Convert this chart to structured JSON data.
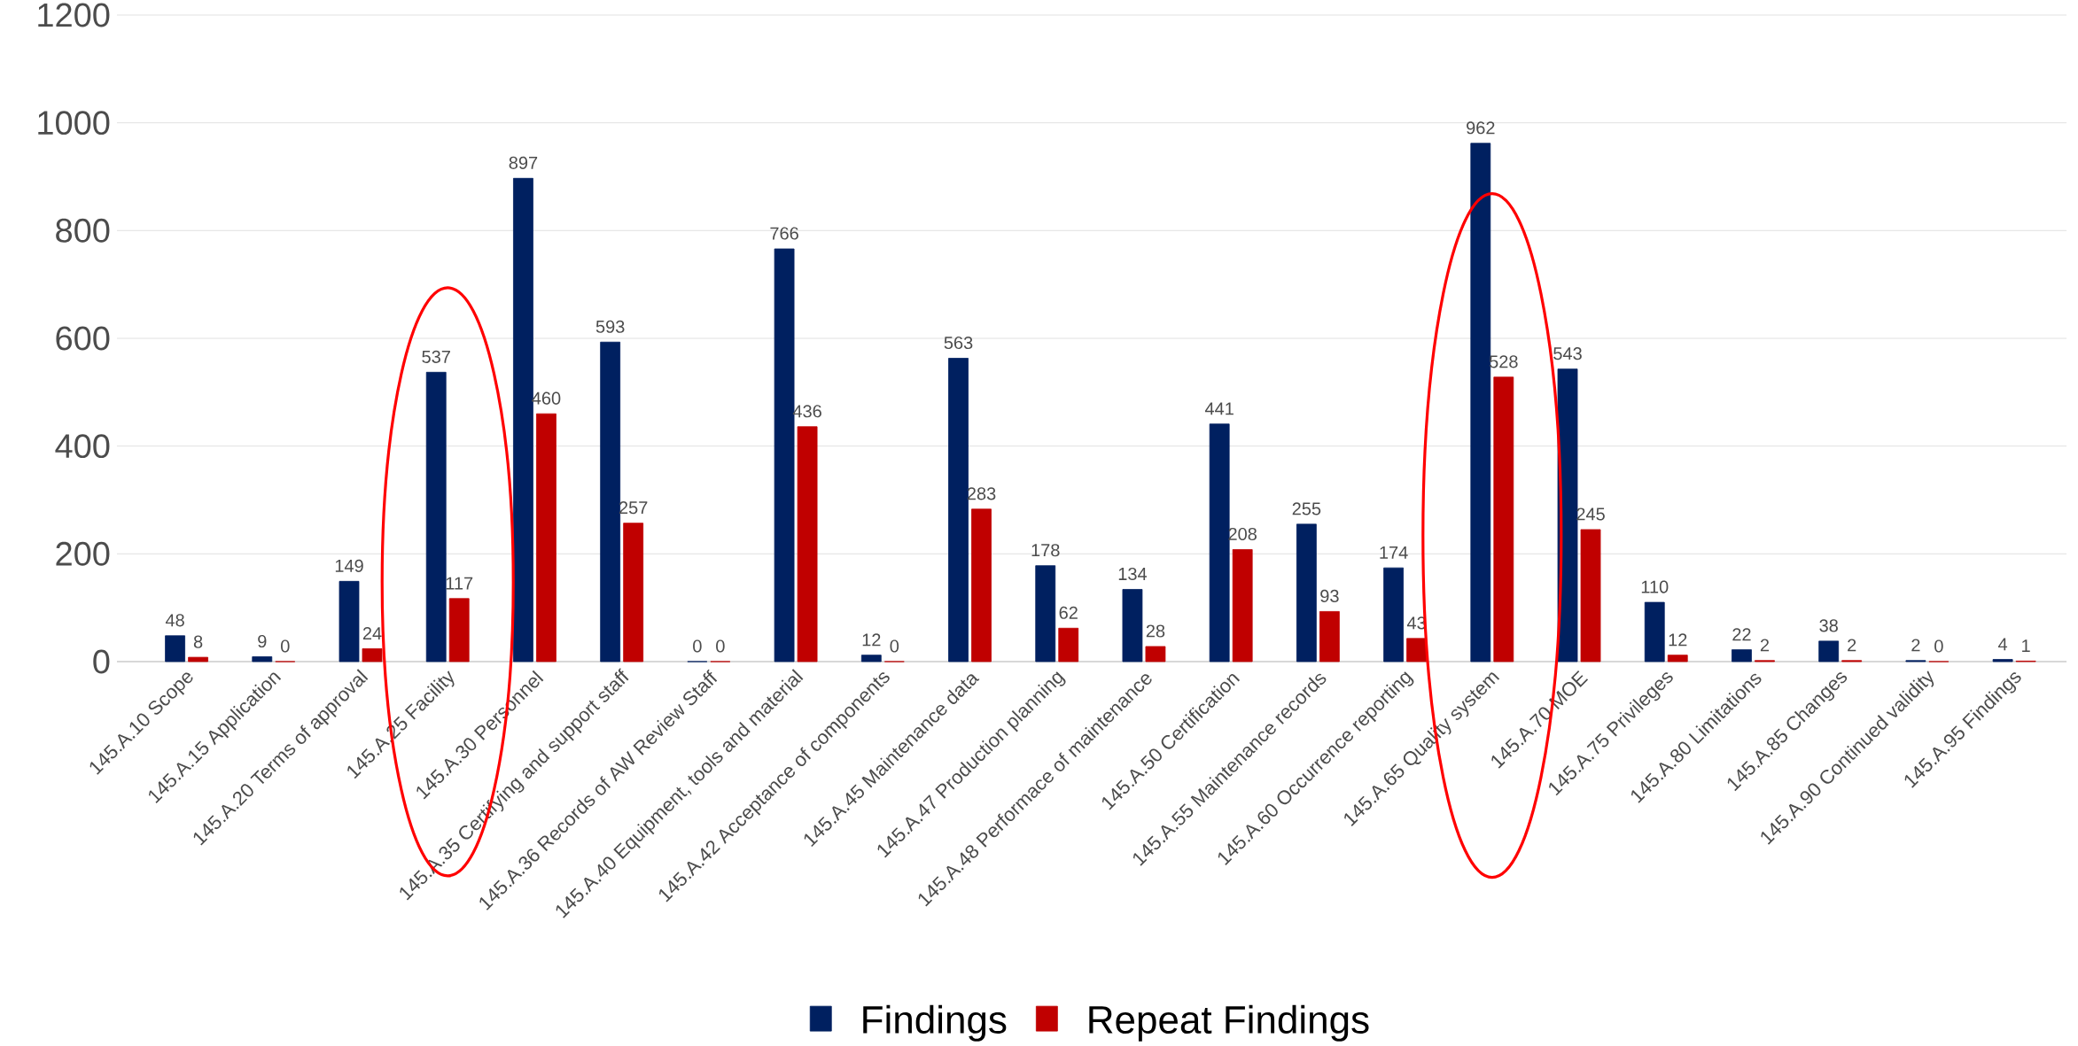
{
  "chart_data": {
    "type": "bar",
    "categories": [
      "145.A.10 Scope",
      "145.A.15 Application",
      "145.A.20 Terms of approval",
      "145.A.25 Facility",
      "145.A.30 Personnel",
      "145.A.35 Certifying and support staff",
      "145.A.36 Records of AW Review Staff",
      "145.A.40 Equipment, tools and material",
      "145.A.42 Acceptance of components",
      "145.A.45 Maintenance data",
      "145.A.47 Production planning",
      "145.A.48 Performace of maintenance",
      "145.A.50 Certification",
      "145.A.55 Maintenance records",
      "145.A.60 Occurrence reporting",
      "145.A.65 Quality system",
      "145.A.70 MOE",
      "145.A.75 Privileges",
      "145.A.80 Limitations",
      "145.A.85 Changes",
      "145.A.90 Continued validity",
      "145.A.95 Findings"
    ],
    "series": [
      {
        "name": "Findings",
        "color": "#002060",
        "values": [
          48,
          9,
          149,
          537,
          897,
          593,
          0,
          766,
          12,
          563,
          178,
          134,
          441,
          255,
          174,
          962,
          543,
          110,
          22,
          38,
          2,
          4
        ]
      },
      {
        "name": "Repeat Findings",
        "color": "#c00000",
        "values": [
          8,
          0,
          24,
          117,
          460,
          257,
          0,
          436,
          0,
          283,
          62,
          28,
          208,
          93,
          43,
          528,
          245,
          12,
          2,
          2,
          0,
          1
        ]
      }
    ],
    "ylim": [
      0,
      1200
    ],
    "yticks": [
      0,
      200,
      400,
      600,
      800,
      1000,
      1200
    ],
    "grid": "y",
    "legend": "bottom",
    "data_labels": true
  }
}
